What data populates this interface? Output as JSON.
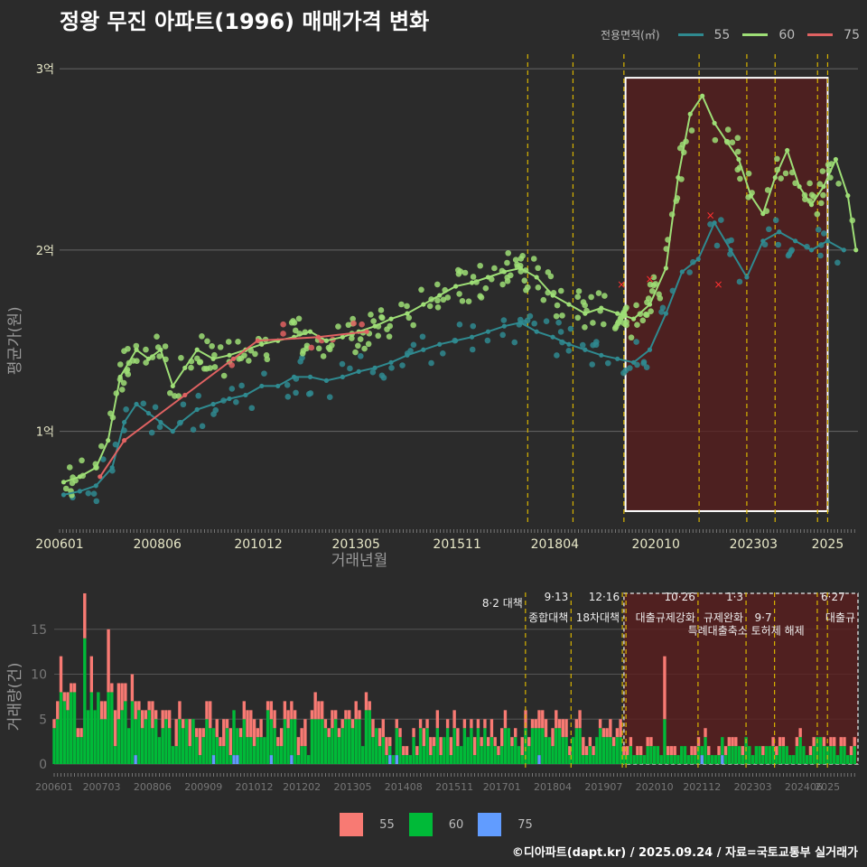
{
  "title": "정왕 무진 아파트(1996) 매매가격 변화",
  "legend_title": "전용면적(㎡)",
  "credit": "©디아파트(dapt.kr) / 2025.09.24 / 자료=국토교통부 실거래가",
  "colors": {
    "55": "#2f8a90",
    "60": "#9ede76",
    "75": "#e06262",
    "vol55": "#f87a73",
    "vol60": "#00ba38",
    "vol75": "#619cff",
    "policy": "#d8b400",
    "highlight_fill": "#5a1e1e"
  },
  "chart_data": [
    {
      "type": "line",
      "ylabel": "평균가(원)",
      "xlabel": "거래년월",
      "x_ticks": [
        "200601",
        "200806",
        "201012",
        "201305",
        "201511",
        "201804",
        "202010",
        "202303",
        "2025"
      ],
      "y_ticks": [
        {
          "v": 1,
          "label": "1억"
        },
        {
          "v": 2,
          "label": "2억"
        },
        {
          "v": 3,
          "label": "3억"
        }
      ],
      "ylim": [
        0.5,
        3.1
      ],
      "xlim": [
        2006.0,
        2025.75
      ],
      "policy_lines": [
        2017.58,
        2018.7,
        2019.96,
        2021.82,
        2023.0,
        2023.7,
        2024.75,
        2025.0
      ],
      "highlight": {
        "x0": 2020.0,
        "x1": 2025.0,
        "y0": 0.56,
        "y1": 2.95
      },
      "series": [
        {
          "name": "55",
          "points": [
            [
              2006.1,
              0.65
            ],
            [
              2006.5,
              0.67
            ],
            [
              2006.9,
              0.7
            ],
            [
              2007.3,
              0.8
            ],
            [
              2007.6,
              1.05
            ],
            [
              2007.9,
              1.15
            ],
            [
              2008.2,
              1.1
            ],
            [
              2008.5,
              1.05
            ],
            [
              2008.8,
              1.0
            ],
            [
              2009.0,
              1.05
            ],
            [
              2009.4,
              1.12
            ],
            [
              2009.8,
              1.15
            ],
            [
              2010.2,
              1.18
            ],
            [
              2010.6,
              1.2
            ],
            [
              2011.0,
              1.25
            ],
            [
              2011.4,
              1.25
            ],
            [
              2011.8,
              1.3
            ],
            [
              2012.2,
              1.3
            ],
            [
              2012.6,
              1.28
            ],
            [
              2013.0,
              1.3
            ],
            [
              2013.4,
              1.33
            ],
            [
              2013.8,
              1.35
            ],
            [
              2014.2,
              1.38
            ],
            [
              2014.6,
              1.42
            ],
            [
              2015.0,
              1.45
            ],
            [
              2015.4,
              1.48
            ],
            [
              2015.8,
              1.5
            ],
            [
              2016.2,
              1.52
            ],
            [
              2016.6,
              1.55
            ],
            [
              2017.0,
              1.58
            ],
            [
              2017.4,
              1.6
            ],
            [
              2017.8,
              1.55
            ],
            [
              2018.2,
              1.52
            ],
            [
              2018.6,
              1.48
            ],
            [
              2019.0,
              1.45
            ],
            [
              2019.4,
              1.42
            ],
            [
              2019.8,
              1.4
            ],
            [
              2020.2,
              1.38
            ],
            [
              2020.6,
              1.45
            ],
            [
              2021.0,
              1.65
            ],
            [
              2021.4,
              1.88
            ],
            [
              2021.8,
              1.95
            ],
            [
              2022.2,
              2.15
            ],
            [
              2022.6,
              2.0
            ],
            [
              2023.0,
              1.85
            ],
            [
              2023.4,
              2.05
            ],
            [
              2023.8,
              2.1
            ],
            [
              2024.2,
              2.05
            ],
            [
              2024.6,
              2.0
            ],
            [
              2025.0,
              2.05
            ],
            [
              2025.4,
              2.0
            ]
          ]
        },
        {
          "name": "60",
          "points": [
            [
              2006.1,
              0.72
            ],
            [
              2006.5,
              0.75
            ],
            [
              2006.9,
              0.8
            ],
            [
              2007.2,
              0.95
            ],
            [
              2007.5,
              1.3
            ],
            [
              2007.9,
              1.45
            ],
            [
              2008.2,
              1.4
            ],
            [
              2008.5,
              1.45
            ],
            [
              2008.8,
              1.25
            ],
            [
              2009.1,
              1.35
            ],
            [
              2009.4,
              1.45
            ],
            [
              2009.8,
              1.4
            ],
            [
              2010.2,
              1.42
            ],
            [
              2010.6,
              1.45
            ],
            [
              2011.0,
              1.48
            ],
            [
              2011.4,
              1.5
            ],
            [
              2011.8,
              1.52
            ],
            [
              2012.2,
              1.55
            ],
            [
              2012.6,
              1.5
            ],
            [
              2013.0,
              1.52
            ],
            [
              2013.4,
              1.55
            ],
            [
              2013.8,
              1.58
            ],
            [
              2014.2,
              1.62
            ],
            [
              2014.6,
              1.65
            ],
            [
              2015.0,
              1.7
            ],
            [
              2015.4,
              1.75
            ],
            [
              2015.8,
              1.8
            ],
            [
              2016.2,
              1.82
            ],
            [
              2016.6,
              1.85
            ],
            [
              2017.0,
              1.88
            ],
            [
              2017.4,
              1.9
            ],
            [
              2017.8,
              1.85
            ],
            [
              2018.2,
              1.75
            ],
            [
              2018.6,
              1.7
            ],
            [
              2019.0,
              1.65
            ],
            [
              2019.4,
              1.68
            ],
            [
              2019.8,
              1.65
            ],
            [
              2020.2,
              1.62
            ],
            [
              2020.6,
              1.7
            ],
            [
              2021.0,
              1.9
            ],
            [
              2021.3,
              2.4
            ],
            [
              2021.6,
              2.75
            ],
            [
              2021.9,
              2.85
            ],
            [
              2022.2,
              2.7
            ],
            [
              2022.5,
              2.6
            ],
            [
              2022.8,
              2.5
            ],
            [
              2023.1,
              2.3
            ],
            [
              2023.4,
              2.2
            ],
            [
              2023.7,
              2.4
            ],
            [
              2024.0,
              2.55
            ],
            [
              2024.3,
              2.35
            ],
            [
              2024.6,
              2.25
            ],
            [
              2024.9,
              2.35
            ],
            [
              2025.2,
              2.5
            ],
            [
              2025.5,
              2.3
            ],
            [
              2025.7,
              2.0
            ]
          ]
        },
        {
          "name": "75",
          "points": [
            [
              2007.0,
              0.75
            ],
            [
              2007.6,
              0.95
            ],
            [
              2009.1,
              1.2
            ],
            [
              2010.3,
              1.4
            ],
            [
              2010.9,
              1.5
            ],
            [
              2012.4,
              1.52
            ],
            [
              2013.6,
              1.55
            ]
          ]
        }
      ],
      "scatter_points": [
        {
          "series": "55",
          "count": 110,
          "seed": 11
        },
        {
          "series": "60",
          "count": 260,
          "seed": 23
        },
        {
          "series": "75",
          "count": 8,
          "seed": 37
        }
      ],
      "cross_marks": [
        [
          2019.9,
          1.81
        ],
        [
          2020.6,
          1.84
        ],
        [
          2022.3,
          1.81
        ],
        [
          2022.1,
          2.19
        ]
      ]
    },
    {
      "type": "bar",
      "stacked": true,
      "ylabel": "거래량(건)",
      "x_ticks": [
        "200601",
        "200703",
        "200806",
        "200909",
        "201012",
        "201202",
        "201305",
        "201408",
        "201511",
        "201701",
        "201804",
        "201907",
        "202010",
        "202112",
        "202303",
        "202406",
        "2025"
      ],
      "y_ticks": [
        0,
        5,
        10,
        15
      ],
      "ylim": [
        -0.8,
        19.5
      ],
      "xlim": [
        2006.0,
        2025.75
      ],
      "months": 237,
      "series_names": [
        "55",
        "60",
        "75"
      ],
      "highlight": {
        "x0": 2020.0,
        "x1": 2025.0,
        "y0": 0,
        "y1": 19
      },
      "policy_lines": [
        2017.58,
        2018.7,
        2019.96,
        2020.05,
        2021.82,
        2023.0,
        2023.7,
        2024.75,
        2025.0
      ],
      "annotations": [
        {
          "x": 2017.58,
          "y": 17.5,
          "text": "8·2 대책",
          "anchor": "end"
        },
        {
          "x": 2018.7,
          "y": 18.2,
          "text": "9·13",
          "anchor": "end"
        },
        {
          "x": 2018.7,
          "y": 15.9,
          "text": "종합대책",
          "anchor": "end"
        },
        {
          "x": 2019.96,
          "y": 18.2,
          "text": "12·16",
          "anchor": "end"
        },
        {
          "x": 2019.96,
          "y": 15.9,
          "text": "18차대책",
          "anchor": "end"
        },
        {
          "x": 2021.82,
          "y": 18.2,
          "text": "10·26",
          "anchor": "end"
        },
        {
          "x": 2021.82,
          "y": 15.9,
          "text": "대출규제강화",
          "anchor": "end"
        },
        {
          "x": 2023.0,
          "y": 18.2,
          "text": "1·3",
          "anchor": "end"
        },
        {
          "x": 2023.0,
          "y": 15.9,
          "text": "규제완화",
          "anchor": "end"
        },
        {
          "x": 2023.7,
          "y": 15.9,
          "text": "9·7",
          "anchor": "end"
        },
        {
          "x": 2024.5,
          "y": 14.4,
          "text": "특례대출축소 토허제 해제",
          "anchor": "end"
        },
        {
          "x": 2025.5,
          "y": 18.2,
          "text": "6·27",
          "anchor": "end"
        },
        {
          "x": 2025.75,
          "y": 15.9,
          "text": "대출규",
          "anchor": "end"
        }
      ]
    }
  ]
}
